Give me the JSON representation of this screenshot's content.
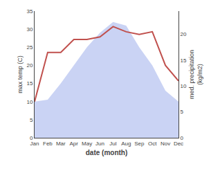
{
  "chart_data": {
    "type": "area",
    "categories": [
      "Jan",
      "Feb",
      "Mar",
      "Apr",
      "May",
      "Jun",
      "Jul",
      "Aug",
      "Sep",
      "Oct",
      "Nov",
      "Dec"
    ],
    "series": [
      {
        "type": "area",
        "color": "#b8c4f0",
        "values": [
          10,
          10.5,
          15,
          20,
          25,
          29,
          32,
          31,
          25,
          20,
          13,
          10
        ]
      },
      {
        "type": "line",
        "axis": "y2",
        "color": "#c0504d",
        "values": [
          7,
          16.5,
          16.5,
          19,
          19,
          19.5,
          21.5,
          20.5,
          20,
          20.5,
          14,
          11
        ]
      }
    ],
    "xlabel": "date (month)",
    "ylabel": "max temp (C)",
    "y2label": "med. precipitation\n(kg/m2)",
    "ylim": [
      0,
      35
    ],
    "yticks": [
      0,
      5,
      10,
      15,
      20,
      25,
      30,
      35
    ],
    "y2lim": [
      0,
      24.5
    ],
    "y2ticks": [
      0,
      5,
      10,
      15,
      20
    ],
    "grid": false
  }
}
